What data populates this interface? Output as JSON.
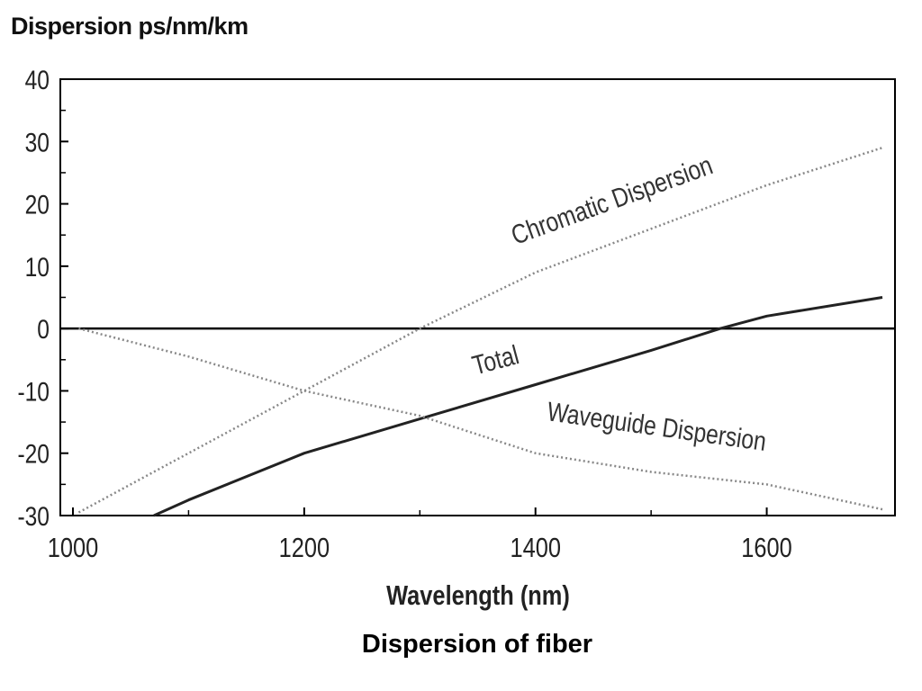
{
  "chart_data": {
    "type": "line",
    "ylabel": "Dispersion ps/nm/km",
    "xlabel": "Wavelength (nm)",
    "caption": "Dispersion of fiber",
    "xlim": [
      1000,
      1700
    ],
    "ylim": [
      -30,
      40
    ],
    "x_ticks": [
      1000,
      1200,
      1400,
      1600
    ],
    "y_ticks": [
      40,
      30,
      20,
      10,
      0,
      -10,
      -20,
      -30
    ],
    "x_tick_labels": [
      "1000",
      "1200",
      "1400",
      "1600"
    ],
    "y_tick_labels": [
      "40",
      "30",
      "20",
      "10",
      "0",
      "-10",
      "-20",
      "-30"
    ],
    "zero_line": true,
    "series": [
      {
        "name": "Chromatic Dispersion",
        "style": "dotted",
        "color": "#888888",
        "x": [
          1005,
          1100,
          1200,
          1300,
          1400,
          1500,
          1600,
          1700
        ],
        "y": [
          -29.5,
          -20,
          -10,
          0,
          9,
          16,
          23,
          29
        ]
      },
      {
        "name": "Total",
        "style": "solid",
        "color": "#222222",
        "x": [
          1070,
          1100,
          1200,
          1300,
          1400,
          1500,
          1560,
          1600,
          1700
        ],
        "y": [
          -30,
          -27.5,
          -20,
          -14.5,
          -9,
          -3.5,
          0,
          2,
          5
        ]
      },
      {
        "name": "Waveguide Dispersion",
        "style": "dotted",
        "color": "#888888",
        "x": [
          1005,
          1100,
          1200,
          1300,
          1400,
          1500,
          1600,
          1700
        ],
        "y": [
          0,
          -4.5,
          -10,
          -14,
          -20,
          -23,
          -25,
          -29
        ]
      }
    ],
    "annotations": [
      {
        "text": "Chromatic Dispersion",
        "series": "Chromatic Dispersion"
      },
      {
        "text": "Total",
        "series": "Total"
      },
      {
        "text": "Waveguide Dispersion",
        "series": "Waveguide Dispersion"
      }
    ]
  }
}
